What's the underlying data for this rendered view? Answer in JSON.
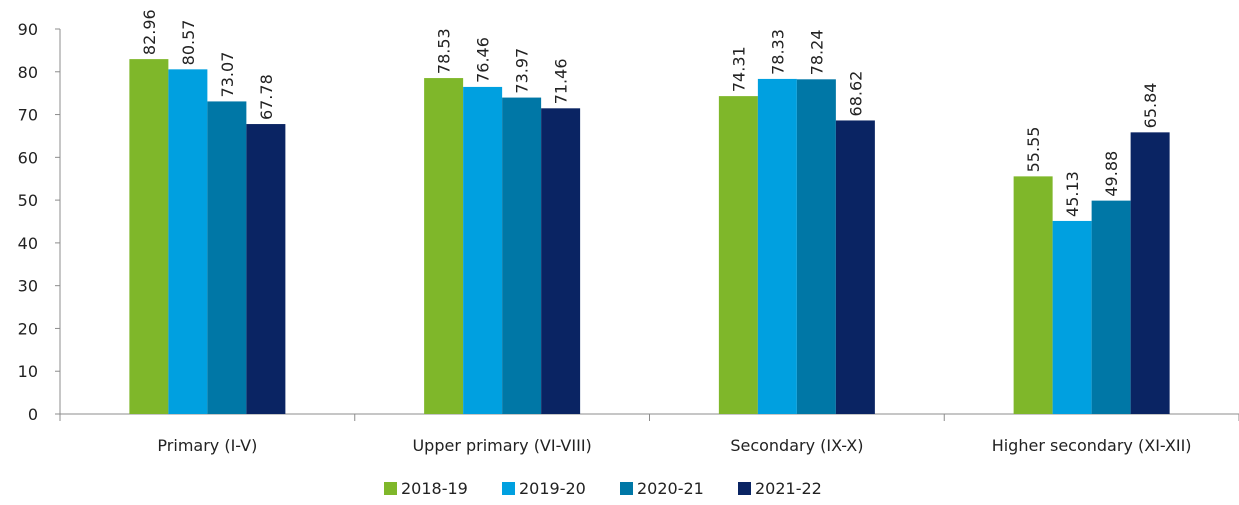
{
  "chart_data": {
    "type": "bar",
    "title": "",
    "xlabel": "",
    "ylabel": "",
    "ylim": [
      0,
      90
    ],
    "yticks": [
      0,
      10,
      20,
      30,
      40,
      50,
      60,
      70,
      80,
      90
    ],
    "grid": false,
    "legend_position": "bottom",
    "categories": [
      "Primary (I-V)",
      "Upper primary (VI-VIII)",
      "Secondary (IX-X)",
      "Higher secondary (XI-XII)"
    ],
    "series": [
      {
        "name": "2018-19",
        "color": "#7fb72a",
        "values": [
          82.96,
          78.53,
          74.31,
          55.55
        ]
      },
      {
        "name": "2019-20",
        "color": "#00a0e0",
        "values": [
          80.57,
          76.46,
          78.33,
          45.13
        ]
      },
      {
        "name": "2020-21",
        "color": "#0077a6",
        "values": [
          73.07,
          73.97,
          78.24,
          49.88
        ]
      },
      {
        "name": "2021-22",
        "color": "#0a2463",
        "values": [
          67.78,
          71.46,
          68.62,
          65.84
        ]
      }
    ]
  }
}
